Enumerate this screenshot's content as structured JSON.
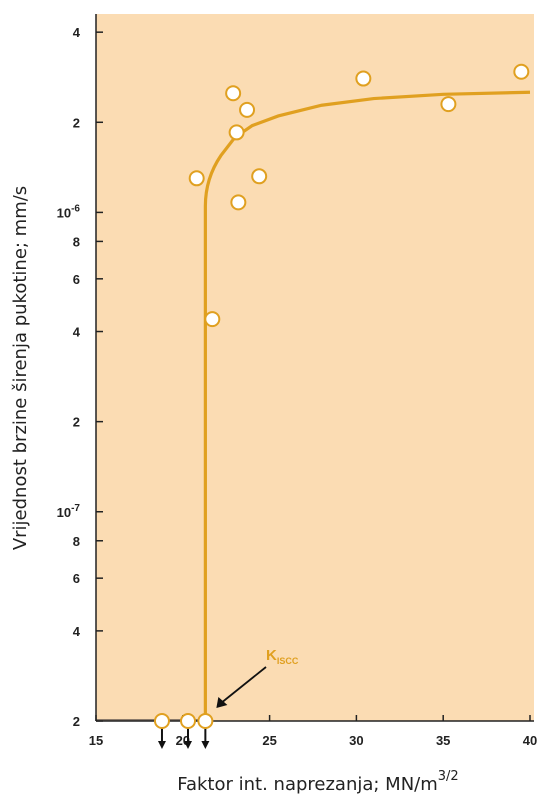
{
  "chart_data": {
    "type": "scatter",
    "xlabel": "Faktor int. naprezanja; MN/m",
    "xlabel_superscript": "3/2",
    "ylabel": "Vrijednost brzine širenja pukotine; mm/s",
    "y_scale": "log",
    "xlim": [
      15,
      40
    ],
    "ylim": [
      2e-08,
      4.6e-06
    ],
    "grid": false,
    "colors": {
      "plot_background": "#fbdcb3",
      "curve": "#e0a020",
      "marker_fill": "#ffffff",
      "marker_edge": "#e0a020",
      "axis": "#222222",
      "annotation_text": "#e0a020"
    },
    "x_ticks": [
      {
        "value": 15,
        "label": "15"
      },
      {
        "value": 20,
        "label": "20"
      },
      {
        "value": 25,
        "label": "25"
      },
      {
        "value": 30,
        "label": "30"
      },
      {
        "value": 35,
        "label": "35"
      },
      {
        "value": 40,
        "label": "40"
      }
    ],
    "y_ticks": [
      {
        "value": 2e-08,
        "label": "2",
        "exp": ""
      },
      {
        "value": 4e-08,
        "label": "4",
        "exp": ""
      },
      {
        "value": 6e-08,
        "label": "6",
        "exp": ""
      },
      {
        "value": 8e-08,
        "label": "8",
        "exp": ""
      },
      {
        "value": 1e-07,
        "label": "10",
        "exp": "-7"
      },
      {
        "value": 2e-07,
        "label": "2",
        "exp": ""
      },
      {
        "value": 4e-07,
        "label": "4",
        "exp": ""
      },
      {
        "value": 6e-07,
        "label": "6",
        "exp": ""
      },
      {
        "value": 8e-07,
        "label": "8",
        "exp": ""
      },
      {
        "value": 1e-06,
        "label": "10",
        "exp": "-6"
      },
      {
        "value": 2e-06,
        "label": "2",
        "exp": ""
      },
      {
        "value": 4e-06,
        "label": "4",
        "exp": ""
      }
    ],
    "points": [
      {
        "x": 22.9,
        "y": 2.5e-06
      },
      {
        "x": 23.7,
        "y": 2.2e-06
      },
      {
        "x": 23.1,
        "y": 1.85e-06
      },
      {
        "x": 20.8,
        "y": 1.3e-06
      },
      {
        "x": 24.4,
        "y": 1.32e-06
      },
      {
        "x": 23.2,
        "y": 1.08e-06
      },
      {
        "x": 21.7,
        "y": 4.4e-07
      },
      {
        "x": 30.4,
        "y": 2.8e-06
      },
      {
        "x": 35.3,
        "y": 2.3e-06
      },
      {
        "x": 39.5,
        "y": 2.95e-06
      }
    ],
    "below_limit_points": [
      {
        "x": 18.8,
        "y": 2e-08
      },
      {
        "x": 20.3,
        "y": 2e-08
      },
      {
        "x": 21.3,
        "y": 2e-08
      }
    ],
    "curve": {
      "threshold_x": 21.3,
      "baseline_y": 2e-08,
      "points": [
        {
          "x": 21.3,
          "y": 1.05e-06
        },
        {
          "x": 21.6,
          "y": 1.3e-06
        },
        {
          "x": 22.2,
          "y": 1.55e-06
        },
        {
          "x": 23.0,
          "y": 1.78e-06
        },
        {
          "x": 24.0,
          "y": 1.95e-06
        },
        {
          "x": 25.5,
          "y": 2.1e-06
        },
        {
          "x": 28.0,
          "y": 2.28e-06
        },
        {
          "x": 31.0,
          "y": 2.4e-06
        },
        {
          "x": 35.0,
          "y": 2.48e-06
        },
        {
          "x": 40.0,
          "y": 2.52e-06
        }
      ]
    },
    "annotations": [
      {
        "text": "K",
        "subscript": "ISCC",
        "arrow_to_x": 21.3,
        "arrow_to_y": 2e-08
      }
    ]
  }
}
